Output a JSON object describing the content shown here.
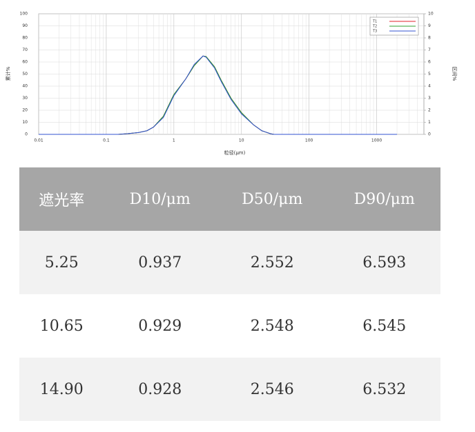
{
  "chart_data": {
    "type": "line",
    "x_label": "粒径(μm)",
    "y_label": "累计%",
    "y2_label": "区间%",
    "xscale": "log",
    "xlim": [
      0.01,
      5000
    ],
    "xticks": [
      0.01,
      0.1,
      1,
      10,
      100,
      1000
    ],
    "ylim": [
      0,
      100
    ],
    "yticks": [
      0,
      10,
      20,
      30,
      40,
      50,
      60,
      70,
      80,
      90,
      100
    ],
    "y2lim": [
      0,
      10
    ],
    "y2ticks": [
      0,
      1,
      2,
      3,
      4,
      5,
      6,
      7,
      8,
      9,
      10
    ],
    "grid": true,
    "minor_grid": true,
    "legend": "upper right",
    "x": [
      0.01,
      0.15,
      0.2,
      0.3,
      0.4,
      0.5,
      0.7,
      1,
      1.5,
      2,
      2.7,
      3,
      4,
      5,
      7,
      10,
      15,
      20,
      27,
      30,
      2000
    ],
    "series": [
      {
        "name": "T1",
        "color": "#e0202a",
        "axis": "y2",
        "values": [
          0,
          0,
          0.05,
          0.15,
          0.3,
          0.6,
          1.5,
          3.3,
          4.6,
          5.7,
          6.5,
          6.45,
          5.6,
          4.5,
          3.0,
          1.8,
          0.8,
          0.3,
          0.05,
          0,
          0
        ]
      },
      {
        "name": "T2",
        "color": "#2ca02c",
        "axis": "y2",
        "values": [
          0,
          0,
          0.05,
          0.15,
          0.3,
          0.6,
          1.5,
          3.3,
          4.6,
          5.7,
          6.5,
          6.45,
          5.6,
          4.5,
          3.0,
          1.8,
          0.8,
          0.3,
          0.05,
          0,
          0
        ]
      },
      {
        "name": "T3",
        "color": "#3050d0",
        "axis": "y2",
        "values": [
          0,
          0,
          0.05,
          0.15,
          0.3,
          0.6,
          1.4,
          3.2,
          4.6,
          5.8,
          6.5,
          6.4,
          5.5,
          4.4,
          2.9,
          1.7,
          0.8,
          0.3,
          0.05,
          0,
          0
        ]
      }
    ]
  },
  "table": {
    "header": [
      "遮光率",
      "D10/μm",
      "D50/μm",
      "D90/μm"
    ],
    "rows": [
      [
        "5.25",
        "0.937",
        "2.552",
        "6.593"
      ],
      [
        "10.65",
        "0.929",
        "2.548",
        "6.545"
      ],
      [
        "14.90",
        "0.928",
        "2.546",
        "6.532"
      ]
    ]
  }
}
